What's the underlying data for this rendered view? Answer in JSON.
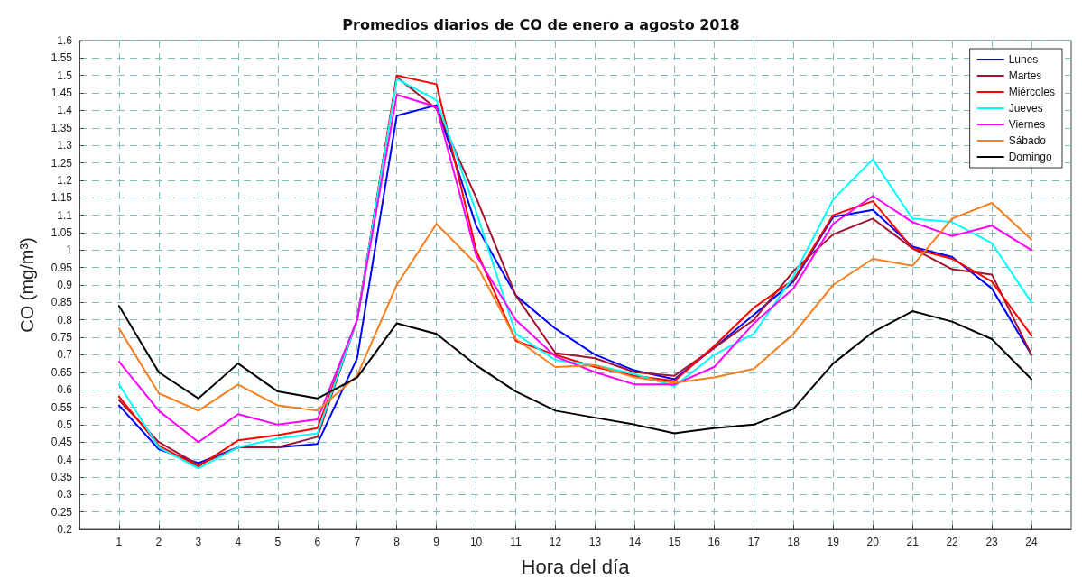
{
  "chart_data": {
    "type": "line",
    "title": "Promedios diarios de CO de enero a agosto 2018",
    "xlabel": "Hora del día",
    "ylabel": "CO (mg/m³)",
    "x": [
      1,
      2,
      3,
      4,
      5,
      6,
      7,
      8,
      9,
      10,
      11,
      12,
      13,
      14,
      15,
      16,
      17,
      18,
      19,
      20,
      21,
      22,
      23,
      24
    ],
    "xlim": [
      0,
      25
    ],
    "xticks": [
      1,
      2,
      3,
      4,
      5,
      6,
      7,
      8,
      9,
      10,
      11,
      12,
      13,
      14,
      15,
      16,
      17,
      18,
      19,
      20,
      21,
      22,
      23,
      24
    ],
    "ylim": [
      0.2,
      1.6
    ],
    "yticks": [
      0.2,
      0.25,
      0.3,
      0.35,
      0.4,
      0.45,
      0.5,
      0.55,
      0.6,
      0.65,
      0.7,
      0.75,
      0.8,
      0.85,
      0.9,
      0.95,
      1,
      1.05,
      1.1,
      1.15,
      1.2,
      1.25,
      1.3,
      1.35,
      1.4,
      1.45,
      1.5,
      1.55,
      1.6
    ],
    "grid": true,
    "legend": "top right",
    "marker": "none",
    "line_style": "solid",
    "series": [
      {
        "name": "Lunes",
        "color": "#0000ff",
        "values": [
          0.555,
          0.43,
          0.39,
          0.435,
          0.435,
          0.445,
          0.69,
          1.385,
          1.415,
          1.07,
          0.87,
          0.775,
          0.7,
          0.655,
          0.63,
          0.72,
          0.815,
          0.91,
          1.095,
          1.115,
          1.01,
          0.98,
          0.89,
          0.7
        ]
      },
      {
        "name": "Martes",
        "color": "#a2142f",
        "values": [
          0.57,
          0.45,
          0.385,
          0.435,
          0.435,
          0.465,
          0.8,
          1.495,
          1.405,
          1.15,
          0.87,
          0.705,
          0.69,
          0.65,
          0.64,
          0.72,
          0.8,
          0.94,
          1.045,
          1.09,
          1.005,
          0.945,
          0.93,
          0.7
        ]
      },
      {
        "name": "Miércoles",
        "color": "#ff0000",
        "values": [
          0.58,
          0.44,
          0.38,
          0.455,
          0.47,
          0.49,
          0.8,
          1.5,
          1.475,
          1.0,
          0.74,
          0.7,
          0.665,
          0.64,
          0.625,
          0.725,
          0.835,
          0.915,
          1.1,
          1.14,
          1.005,
          0.975,
          0.91,
          0.755
        ]
      },
      {
        "name": "Jueves",
        "color": "#00ffff",
        "values": [
          0.615,
          0.435,
          0.375,
          0.435,
          0.46,
          0.475,
          0.8,
          1.49,
          1.43,
          1.11,
          0.76,
          0.685,
          0.67,
          0.645,
          0.61,
          0.7,
          0.76,
          0.925,
          1.145,
          1.26,
          1.09,
          1.08,
          1.02,
          0.85
        ]
      },
      {
        "name": "Viernes",
        "color": "#ff00ff",
        "values": [
          0.68,
          0.54,
          0.45,
          0.53,
          0.5,
          0.515,
          0.8,
          1.445,
          1.41,
          0.985,
          0.8,
          0.695,
          0.65,
          0.615,
          0.615,
          0.665,
          0.79,
          0.89,
          1.075,
          1.155,
          1.08,
          1.04,
          1.07,
          1.0
        ]
      },
      {
        "name": "Sábado",
        "color": "#f77f1f",
        "values": [
          0.775,
          0.59,
          0.54,
          0.615,
          0.555,
          0.54,
          0.64,
          0.9,
          1.075,
          0.96,
          0.745,
          0.665,
          0.67,
          0.635,
          0.62,
          0.635,
          0.66,
          0.76,
          0.9,
          0.975,
          0.955,
          1.09,
          1.135,
          1.03
        ]
      },
      {
        "name": "Domingo",
        "color": "#000000",
        "values": [
          0.84,
          0.65,
          0.575,
          0.675,
          0.595,
          0.575,
          0.635,
          0.79,
          0.76,
          0.67,
          0.595,
          0.54,
          0.52,
          0.5,
          0.475,
          0.49,
          0.5,
          0.545,
          0.675,
          0.765,
          0.825,
          0.795,
          0.745,
          0.63
        ]
      }
    ]
  }
}
